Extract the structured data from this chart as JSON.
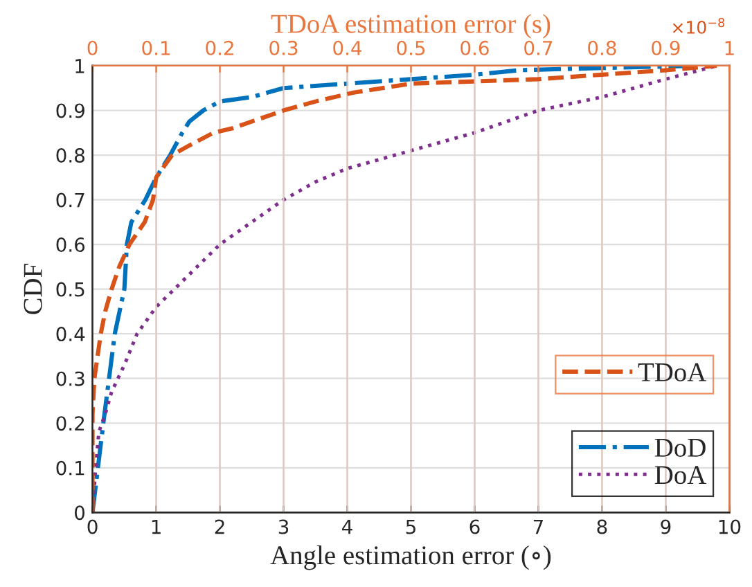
{
  "chart_data": {
    "type": "line",
    "xlabel": "Angle estimation error (∘)",
    "ylabel": "CDF",
    "x2label": "TDoA estimation error (s)",
    "annotations": [
      "×10$^{−8}$"
    ],
    "xlim": [
      0,
      10
    ],
    "xticks": [
      0,
      1,
      2,
      3,
      4,
      5,
      6,
      7,
      8,
      9,
      10
    ],
    "x2lim": [
      0,
      1
    ],
    "x2ticks": [
      0,
      0.1,
      0.2,
      0.3,
      0.4,
      0.5,
      0.6,
      0.7,
      0.8,
      0.9,
      1
    ],
    "ylim": [
      0,
      1
    ],
    "yticks": [
      0,
      0.1,
      0.2,
      0.3,
      0.4,
      0.5,
      0.6,
      0.7,
      0.8,
      0.9,
      1
    ],
    "grid": true,
    "legend": "bottom right",
    "series": [
      {
        "name": "TDoA",
        "color": "#d95319",
        "line_style": "dashed",
        "axis": "x2",
        "x": [
          0,
          0,
          0.003,
          0.013,
          0.02,
          0.03,
          0.042,
          0.058,
          0.082,
          0.095,
          0.1,
          0.125,
          0.15,
          0.19,
          0.22,
          0.3,
          0.35,
          0.41,
          0.5,
          0.6,
          0.7,
          0.8,
          0.9,
          0.98
        ],
        "values": [
          0,
          0.22,
          0.3,
          0.4,
          0.45,
          0.5,
          0.55,
          0.6,
          0.65,
          0.7,
          0.75,
          0.8,
          0.82,
          0.85,
          0.86,
          0.9,
          0.92,
          0.94,
          0.96,
          0.965,
          0.97,
          0.98,
          0.99,
          1.0
        ]
      },
      {
        "name": "DoD",
        "color": "#0072bd",
        "line_style": "dashdot",
        "x": [
          0,
          0.17,
          0.35,
          0.5,
          0.54,
          0.61,
          0.83,
          1.0,
          1.22,
          1.41,
          1.52,
          1.74,
          2.0,
          2.5,
          3.0,
          4.0,
          5.0,
          6.0,
          6.7,
          8.0,
          9.5
        ],
        "values": [
          0,
          0.2,
          0.4,
          0.5,
          0.6,
          0.65,
          0.7,
          0.75,
          0.8,
          0.85,
          0.875,
          0.9,
          0.92,
          0.93,
          0.95,
          0.96,
          0.97,
          0.98,
          0.99,
          0.995,
          1.0
        ]
      },
      {
        "name": "DoA",
        "color": "#7e2f8e",
        "line_style": "dotted",
        "x": [
          0,
          0.05,
          0.1,
          0.2,
          0.3,
          0.5,
          0.7,
          1,
          1.5,
          2,
          2.5,
          3,
          3.5,
          4,
          5,
          6,
          7,
          8,
          9,
          9.8
        ],
        "values": [
          0,
          0.1,
          0.18,
          0.22,
          0.27,
          0.33,
          0.4,
          0.46,
          0.53,
          0.6,
          0.65,
          0.7,
          0.74,
          0.77,
          0.81,
          0.85,
          0.9,
          0.93,
          0.97,
          1.0
        ]
      }
    ]
  }
}
